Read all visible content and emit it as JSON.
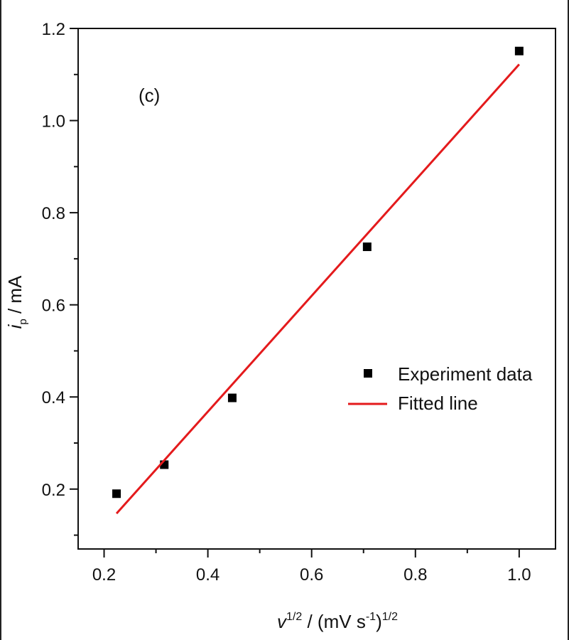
{
  "chart_data": {
    "type": "scatter",
    "panel_label": "(c)",
    "xlim": [
      0.15,
      1.07
    ],
    "ylim": [
      0.07,
      1.2
    ],
    "xticks": [
      0.2,
      0.4,
      0.6,
      0.8,
      1.0
    ],
    "xtick_labels": [
      "0.2",
      "0.4",
      "0.6",
      "0.8",
      "1.0"
    ],
    "yticks": [
      0.2,
      0.4,
      0.6,
      0.8,
      1.0,
      1.2
    ],
    "ytick_labels": [
      "0.2",
      "0.4",
      "0.6",
      "0.8",
      "1.0",
      "1.2"
    ],
    "xlabel": {
      "base": "v",
      "sup": "1/2",
      "mid": " / (mV s",
      "sup2": "-1",
      "close": ")",
      "sup3": "1/2"
    },
    "ylabel": {
      "base": "i",
      "sub": "p",
      "rest": " / mA"
    },
    "series": [
      {
        "name": "Experiment data",
        "kind": "scatter",
        "marker": "square",
        "color": "#000000",
        "points": [
          {
            "x": 0.224,
            "y": 0.19
          },
          {
            "x": 0.316,
            "y": 0.253
          },
          {
            "x": 0.447,
            "y": 0.398
          },
          {
            "x": 0.707,
            "y": 0.726
          },
          {
            "x": 1.0,
            "y": 1.151
          }
        ]
      },
      {
        "name": "Fitted line",
        "kind": "line",
        "color": "#e41a1c",
        "points": [
          {
            "x": 0.224,
            "y": 0.147
          },
          {
            "x": 1.0,
            "y": 1.122
          }
        ]
      }
    ],
    "legend_position": "center-right",
    "grid": false
  }
}
